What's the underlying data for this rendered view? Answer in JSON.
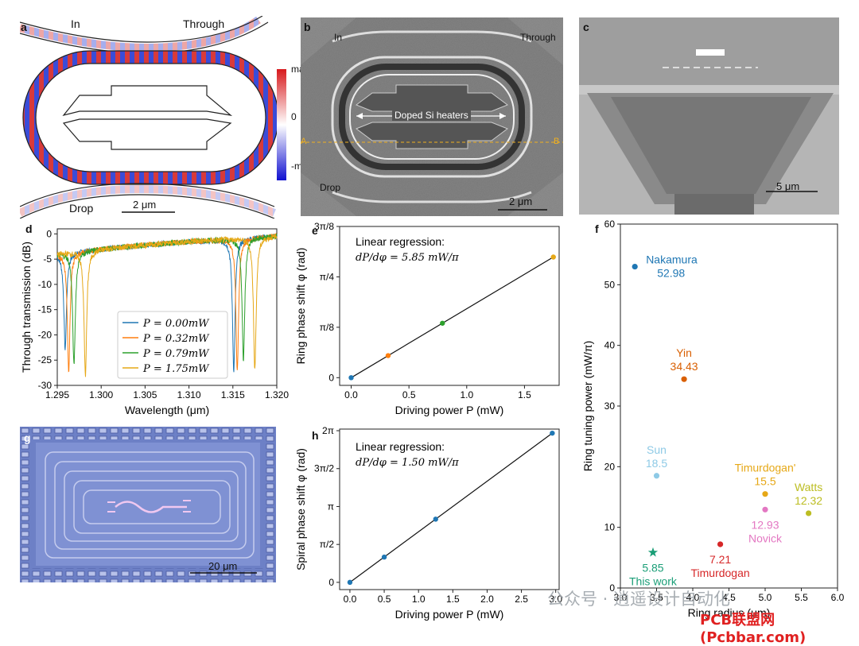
{
  "panel_labels": {
    "a": "a",
    "b": "b",
    "c": "c",
    "d": "d",
    "e": "e",
    "f": "f",
    "g": "g",
    "h": "h"
  },
  "panel_a": {
    "in": "In",
    "through": "Through",
    "drop": "Drop",
    "scale": "2 μm",
    "colorbar": {
      "max": "max",
      "mid": "0",
      "min": "-max"
    }
  },
  "panel_b": {
    "in": "In",
    "through": "Through",
    "drop": "Drop",
    "scale": "2 μm",
    "heaters": "Doped Si heaters",
    "a": "A",
    "b": "B"
  },
  "panel_c": {
    "scale": "5 μm"
  },
  "panel_g": {
    "scale": "20 μm"
  },
  "watermark": {
    "left": "公众号 · 逍遥设计自动化",
    "right": "PCB联盟网(Pcbbar.com)"
  },
  "chart_data": [
    {
      "id": "d",
      "type": "line",
      "xlabel": "Wavelength (μm)",
      "ylabel": "Through transmission (dB)",
      "xlim": [
        1.295,
        1.32
      ],
      "ylim": [
        -30,
        1
      ],
      "xticks": [
        "1.295",
        "1.300",
        "1.305",
        "1.310",
        "1.315",
        "1.320"
      ],
      "yticks": [
        "0",
        "-5",
        "-10",
        "-15",
        "-20",
        "-25",
        "-30"
      ],
      "baseline": [
        {
          "x": 1.295,
          "y": -4.0
        },
        {
          "x": 1.3,
          "y": -3.0
        },
        {
          "x": 1.305,
          "y": -2.2
        },
        {
          "x": 1.31,
          "y": -1.5
        },
        {
          "x": 1.315,
          "y": -1.0
        },
        {
          "x": 1.32,
          "y": -0.4
        }
      ],
      "legend_position": "lower-left",
      "series": [
        {
          "name": "P = 0.00mW",
          "color": "#1f77b4",
          "dips": [
            {
              "x": 1.2959,
              "depth": -23
            },
            {
              "x": 1.3151,
              "depth": -27
            }
          ]
        },
        {
          "name": "P = 0.32mW",
          "color": "#ff7f0e",
          "dips": [
            {
              "x": 1.2963,
              "depth": -27
            },
            {
              "x": 1.3155,
              "depth": -27
            }
          ]
        },
        {
          "name": "P = 0.79mW",
          "color": "#2ca02c",
          "dips": [
            {
              "x": 1.2969,
              "depth": -26
            },
            {
              "x": 1.3162,
              "depth": -25
            }
          ]
        },
        {
          "name": "P = 1.75mW",
          "color": "#e6a817",
          "dips": [
            {
              "x": 1.2982,
              "depth": -28
            },
            {
              "x": 1.3175,
              "depth": -27
            }
          ]
        }
      ]
    },
    {
      "id": "e",
      "type": "scatter",
      "xlabel": "Driving power P (mW)",
      "ylabel": "Ring phase shift φ (rad)",
      "xlim": [
        -0.1,
        1.8
      ],
      "ylim": [
        -0.06,
        1.1781
      ],
      "xticks": [
        {
          "v": 0,
          "t": "0.0"
        },
        {
          "v": 0.5,
          "t": "0.5"
        },
        {
          "v": 1.0,
          "t": "1.0"
        },
        {
          "v": 1.5,
          "t": "1.5"
        }
      ],
      "yticks": [
        {
          "v": 0,
          "t": "0"
        },
        {
          "v": 0.3927,
          "t": "π/8"
        },
        {
          "v": 0.7854,
          "t": "π/4"
        },
        {
          "v": 1.1781,
          "t": "3π/8"
        }
      ],
      "annotation": {
        "line1": "Linear regression:",
        "line2": "dP/dφ = 5.85 mW/π"
      },
      "fit": {
        "x": [
          0.0,
          1.75
        ],
        "y": [
          0.0,
          0.9398
        ]
      },
      "points": [
        {
          "x": 0.0,
          "y": 0.0,
          "color": "#1f77b4"
        },
        {
          "x": 0.32,
          "y": 0.172,
          "color": "#ff7f0e"
        },
        {
          "x": 0.79,
          "y": 0.4243,
          "color": "#2ca02c"
        },
        {
          "x": 1.75,
          "y": 0.9398,
          "color": "#e6a817"
        }
      ]
    },
    {
      "id": "h",
      "type": "scatter",
      "xlabel": "Driving power P (mW)",
      "ylabel": "Spiral phase shift φ (rad)",
      "xlim": [
        -0.15,
        3.05
      ],
      "ylim": [
        -0.3,
        6.35
      ],
      "xticks": [
        {
          "v": 0,
          "t": "0.0"
        },
        {
          "v": 0.5,
          "t": "0.5"
        },
        {
          "v": 1.0,
          "t": "1.0"
        },
        {
          "v": 1.5,
          "t": "1.5"
        },
        {
          "v": 2.0,
          "t": "2.0"
        },
        {
          "v": 2.5,
          "t": "2.5"
        },
        {
          "v": 3.0,
          "t": "3.0"
        }
      ],
      "yticks": [
        {
          "v": 0,
          "t": "0"
        },
        {
          "v": 1.5708,
          "t": "π/2"
        },
        {
          "v": 3.1416,
          "t": "π"
        },
        {
          "v": 4.7124,
          "t": "3π/2"
        },
        {
          "v": 6.2832,
          "t": "2π"
        }
      ],
      "annotation": {
        "line1": "Linear regression:",
        "line2": "dP/dφ = 1.50 mW/π"
      },
      "fit": {
        "x": [
          0.0,
          2.95
        ],
        "y": [
          0.0,
          6.18
        ]
      },
      "points": [
        {
          "x": 0.0,
          "y": 0.0,
          "color": "#1f77b4"
        },
        {
          "x": 0.5,
          "y": 1.0472,
          "color": "#1f77b4"
        },
        {
          "x": 1.25,
          "y": 2.618,
          "color": "#1f77b4"
        },
        {
          "x": 2.95,
          "y": 6.18,
          "color": "#1f77b4"
        }
      ]
    },
    {
      "id": "f",
      "type": "scatter",
      "xlabel": "Ring radius (μm)",
      "ylabel": "Ring tuning power (mW/π)",
      "xlim": [
        3.0,
        6.0
      ],
      "ylim": [
        0,
        60
      ],
      "xticks": [
        {
          "v": 3.0,
          "t": "3.0"
        },
        {
          "v": 3.5,
          "t": "3.5"
        },
        {
          "v": 4.0,
          "t": "4.0"
        },
        {
          "v": 4.5,
          "t": "4.5"
        },
        {
          "v": 5.0,
          "t": "5.0"
        },
        {
          "v": 5.5,
          "t": "5.5"
        },
        {
          "v": 6.0,
          "t": "6.0"
        }
      ],
      "yticks": [
        {
          "v": 0,
          "t": "0"
        },
        {
          "v": 10,
          "t": "10"
        },
        {
          "v": 20,
          "t": "20"
        },
        {
          "v": 30,
          "t": "30"
        },
        {
          "v": 40,
          "t": "40"
        },
        {
          "v": 50,
          "t": "50"
        },
        {
          "v": 60,
          "t": "60"
        }
      ],
      "points": [
        {
          "name": "Nakamura",
          "value": "52.98",
          "x": 3.2,
          "y": 52.98,
          "color": "#1f77b4",
          "label_pos": "right"
        },
        {
          "name": "Yin",
          "value": "34.43",
          "x": 3.88,
          "y": 34.43,
          "color": "#d95f02",
          "label_pos": "above"
        },
        {
          "name": "Sun",
          "value": "18.5",
          "x": 3.5,
          "y": 18.5,
          "color": "#8ecae6",
          "label_pos": "above"
        },
        {
          "name": "Timurdogan'",
          "value": "15.5",
          "x": 5.0,
          "y": 15.5,
          "color": "#e6a817",
          "label_pos": "above"
        },
        {
          "name": "Watts",
          "value": "12.32",
          "x": 5.6,
          "y": 12.32,
          "color": "#bcbd22",
          "label_pos": "above"
        },
        {
          "name": "Novick",
          "value": "12.93",
          "x": 5.0,
          "y": 12.93,
          "color": "#e377c2",
          "label_pos": "below"
        },
        {
          "name": "Timurdogan",
          "value": "7.21",
          "x": 4.38,
          "y": 7.21,
          "color": "#d62728",
          "label_pos": "below"
        },
        {
          "name": "This work",
          "value": "5.85",
          "x": 3.45,
          "y": 5.85,
          "color": "#1a9e77",
          "marker": "star",
          "label_pos": "below"
        }
      ]
    }
  ]
}
